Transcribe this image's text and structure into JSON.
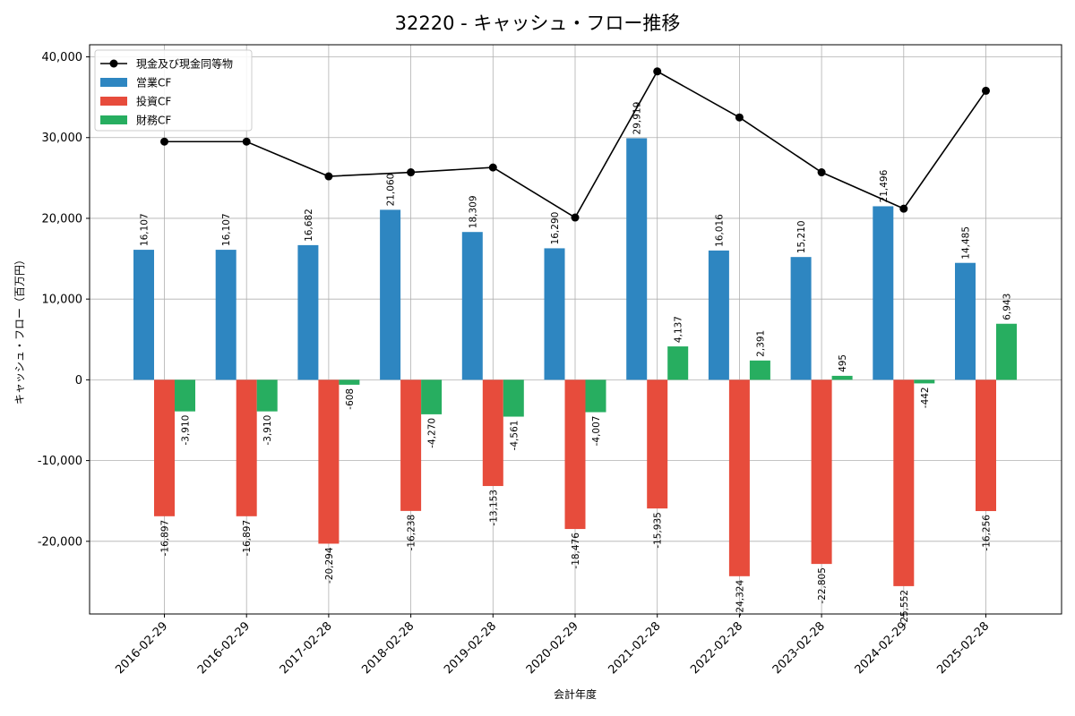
{
  "chart_data": {
    "type": "bar",
    "title": "32220 - キャッシュ・フロー推移",
    "xlabel": "会計年度",
    "ylabel": "キャッシュ・フロー（百万円）",
    "categories": [
      "2016-02-29",
      "2016-02-29",
      "2017-02-28",
      "2018-02-28",
      "2019-02-28",
      "2020-02-29",
      "2021-02-28",
      "2022-02-28",
      "2023-02-28",
      "2024-02-29",
      "2025-02-28"
    ],
    "series": [
      {
        "name": "営業CF",
        "kind": "bar",
        "color": "#2e86c1",
        "values": [
          16107,
          16107,
          16682,
          21060,
          18309,
          16290,
          29919,
          16016,
          15210,
          21496,
          14485
        ]
      },
      {
        "name": "投資CF",
        "kind": "bar",
        "color": "#e74c3c",
        "values": [
          -16897,
          -16897,
          -20294,
          -16238,
          -13153,
          -18476,
          -15935,
          -24324,
          -22805,
          -25552,
          -16256
        ]
      },
      {
        "name": "財務CF",
        "kind": "bar",
        "color": "#27ae60",
        "values": [
          -3910,
          -3910,
          -608,
          -4270,
          -4561,
          -4007,
          4137,
          2391,
          495,
          -442,
          6943
        ]
      },
      {
        "name": "現金及び現金同等物",
        "kind": "line",
        "color": "#000000",
        "values": [
          29500,
          29500,
          25200,
          25700,
          26300,
          20100,
          38200,
          32500,
          25700,
          21200,
          35800
        ]
      }
    ],
    "ylim": [
      -29000,
      41500
    ],
    "yticks": [
      -20000,
      -10000,
      0,
      10000,
      20000,
      30000,
      40000
    ],
    "ytick_labels": [
      "-20,000",
      "-10,000",
      "0",
      "10,000",
      "20,000",
      "30,000",
      "40,000"
    ],
    "grid": true,
    "legend": "top-left"
  }
}
